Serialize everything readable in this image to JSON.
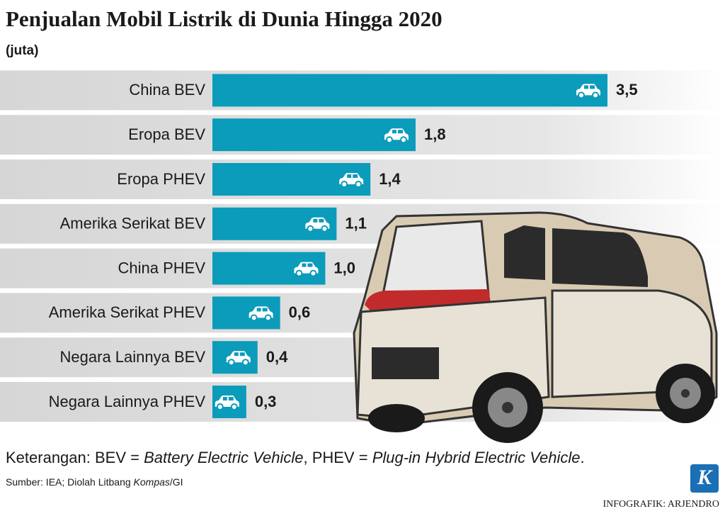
{
  "chart_data": {
    "type": "bar",
    "orientation": "horizontal",
    "title": "Penjualan Mobil Listrik di Dunia Hingga 2020",
    "subtitle": "(juta)",
    "categories": [
      "China BEV",
      "Eropa BEV",
      "Eropa PHEV",
      "Amerika Serikat BEV",
      "China PHEV",
      "Amerika Serikat PHEV",
      "Negara Lainnya BEV",
      "Negara Lainnya PHEV"
    ],
    "values": [
      3.5,
      1.8,
      1.4,
      1.1,
      1.0,
      0.6,
      0.4,
      0.3
    ],
    "value_labels": [
      "3,5",
      "1,8",
      "1,4",
      "1,1",
      "1,0",
      "0,6",
      "0,4",
      "0,3"
    ],
    "color": "#0b9bbb",
    "note": [
      "Keterangan: BEV = ",
      "Battery Electric Vehicle",
      ", PHEV = ",
      "Plug-in Hybrid Electric Vehicle",
      "."
    ],
    "source": [
      "Sumber: IEA; Diolah Litbang ",
      "Kompas",
      "/GI"
    ],
    "credit": "INFOGRAFIK: ARJENDRO",
    "logo": "K"
  }
}
